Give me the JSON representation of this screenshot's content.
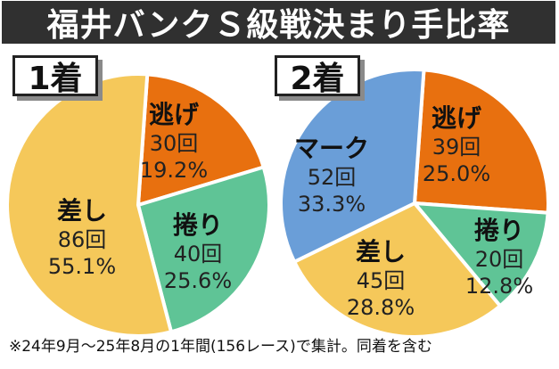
{
  "title": "福井バンクＳ級戦決まり手比率",
  "footnote": "※24年9月～25年8月の1年間(156レース)で集計。同着を含む",
  "colors": {
    "逃げ": "#e8700f",
    "捲り": "#5fc496",
    "差し": "#f5c85a",
    "マーク": "#6a9ed8"
  },
  "chart_data": [
    {
      "type": "pie",
      "title": "1着",
      "start_angle_deg": 4,
      "slices": [
        {
          "name": "逃げ",
          "count_label": "30回",
          "percent_label": "19.2%",
          "value": 19.2
        },
        {
          "name": "捲り",
          "count_label": "40回",
          "percent_label": "25.6%",
          "value": 25.6
        },
        {
          "name": "差し",
          "count_label": "86回",
          "percent_label": "55.1%",
          "value": 55.1
        }
      ]
    },
    {
      "type": "pie",
      "title": "2着",
      "start_angle_deg": 4,
      "slices": [
        {
          "name": "逃げ",
          "count_label": "39回",
          "percent_label": "25.0%",
          "value": 25.0
        },
        {
          "name": "捲り",
          "count_label": "20回",
          "percent_label": "12.8%",
          "value": 12.8
        },
        {
          "name": "差し",
          "count_label": "45回",
          "percent_label": "28.8%",
          "value": 28.8
        },
        {
          "name": "マーク",
          "count_label": "52回",
          "percent_label": "33.3%",
          "value": 33.3
        }
      ]
    }
  ]
}
